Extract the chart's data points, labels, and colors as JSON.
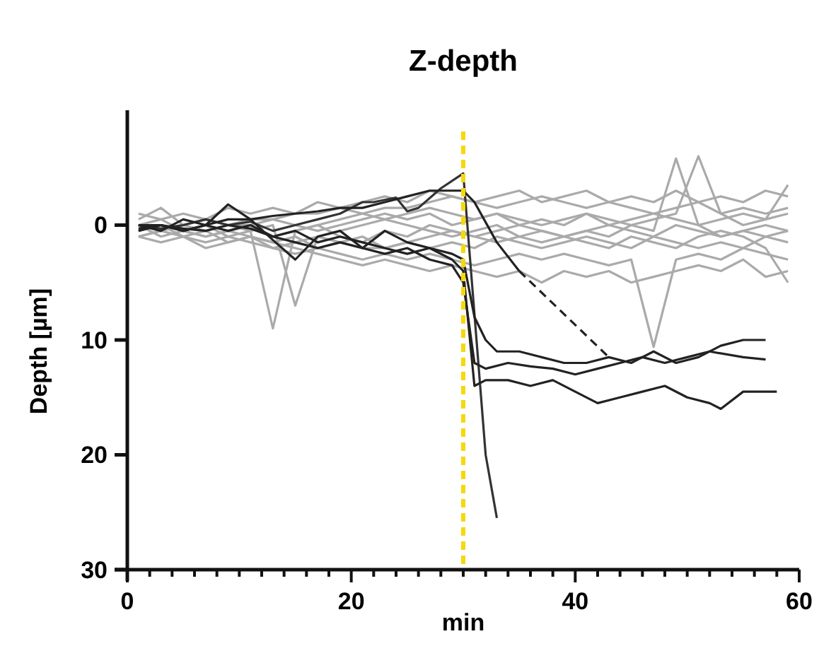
{
  "chart_data": {
    "type": "line",
    "title": "Z-depth",
    "xlabel": "min",
    "ylabel": "Depth [µm]",
    "xlim": [
      0,
      60
    ],
    "ylim": [
      30,
      -10
    ],
    "xticks": [
      0,
      {
        "value": 2,
        "label": null
      },
      {
        "value": 4,
        "label": null
      },
      {
        "value": 6,
        "label": null
      },
      {
        "value": 8,
        "label": null
      },
      {
        "value": 10,
        "label": null
      },
      {
        "value": 12,
        "label": null
      },
      {
        "value": 14,
        "label": null
      },
      {
        "value": 16,
        "label": null
      },
      {
        "value": 18,
        "label": null
      },
      20,
      {
        "value": 22,
        "label": null
      },
      {
        "value": 24,
        "label": null
      },
      {
        "value": 26,
        "label": null
      },
      {
        "value": 28,
        "label": null
      },
      {
        "value": 30,
        "label": null
      },
      {
        "value": 32,
        "label": null
      },
      {
        "value": 34,
        "label": null
      },
      {
        "value": 36,
        "label": null
      },
      {
        "value": 38,
        "label": null
      },
      40,
      {
        "value": 42,
        "label": null
      },
      {
        "value": 44,
        "label": null
      },
      {
        "value": 46,
        "label": null
      },
      {
        "value": 48,
        "label": null
      },
      {
        "value": 50,
        "label": null
      },
      {
        "value": 52,
        "label": null
      },
      {
        "value": 54,
        "label": null
      },
      {
        "value": 56,
        "label": null
      },
      {
        "value": 58,
        "label": null
      },
      60
    ],
    "yticks": [
      0,
      10,
      20,
      30
    ],
    "grid": false,
    "x": [
      1,
      3,
      5,
      7,
      9,
      11,
      13,
      15,
      17,
      19,
      21,
      23,
      25,
      27,
      29,
      31,
      33,
      35,
      37,
      39,
      41,
      43,
      45,
      47,
      49,
      51,
      53,
      55,
      57,
      59
    ],
    "ref_lines": [
      {
        "axis": "x",
        "value": 30,
        "color": "#f5d90a",
        "line_style": "dashed"
      }
    ],
    "series": [
      {
        "color": "#aaaaaa",
        "values": [
          1,
          0.5,
          0,
          -0.5,
          0,
          0.5,
          9,
          0.5,
          0,
          -0.5,
          -1,
          -1.5,
          -1.5,
          -2,
          -2.5,
          -2,
          -1.5,
          -2,
          -2.5,
          -2,
          -1.5,
          -2,
          -1.5,
          -1,
          -1.5,
          -2,
          -1,
          -1.5,
          -1,
          -1.5
        ]
      },
      {
        "color": "#aaaaaa",
        "values": [
          0,
          -0.5,
          0.5,
          0,
          1,
          0.5,
          0,
          7,
          1,
          0.5,
          0,
          -0.5,
          0,
          0.5,
          1,
          0.5,
          0,
          1,
          1.5,
          1,
          0.5,
          1,
          0,
          0.5,
          -5.8,
          0,
          1,
          0.5,
          1,
          0.5
        ]
      },
      {
        "color": "#aaaaaa",
        "values": [
          -0.5,
          -1.5,
          0,
          0.5,
          0,
          -0.5,
          -0.5,
          -1,
          -1,
          -1.5,
          -2,
          -2.5,
          -2,
          -3,
          -2.5,
          -2,
          -2.5,
          -3,
          -2,
          -2.5,
          -3,
          -2,
          -2.5,
          -2,
          -3,
          -2,
          -2.5,
          -2,
          -3,
          -2.5
        ]
      },
      {
        "color": "#aaaaaa",
        "values": [
          1,
          1.5,
          1,
          2,
          1.5,
          1,
          1.5,
          2,
          2.5,
          3,
          3.5,
          3,
          3.5,
          4,
          3.5,
          4,
          4.5,
          4,
          5,
          4,
          4.5,
          4,
          5,
          4.5,
          4,
          3.5,
          4,
          3,
          4.5,
          4
        ]
      },
      {
        "color": "#aaaaaa",
        "values": [
          0.5,
          0,
          1,
          0.5,
          1.5,
          1,
          2,
          2.5,
          2,
          2.5,
          3,
          2.5,
          3,
          2.5,
          3,
          3.5,
          3,
          2.5,
          3,
          2.5,
          3,
          3.5,
          3,
          10.6,
          3,
          2.5,
          3,
          2,
          2.5,
          3
        ]
      },
      {
        "color": "#aaaaaa",
        "values": [
          0,
          0.5,
          0,
          -0.5,
          0,
          0,
          -0.5,
          0,
          0.5,
          0,
          -0.5,
          -1,
          -0.5,
          -1,
          0,
          -0.5,
          -1,
          0,
          -0.5,
          0,
          -1,
          -0.5,
          0,
          -0.5,
          -1,
          -6,
          -1,
          0,
          -0.5,
          -3.5
        ]
      },
      {
        "color": "#aaaaaa",
        "values": [
          1,
          0.5,
          1,
          1.5,
          1,
          1.5,
          2,
          1.5,
          1,
          1.5,
          1,
          2,
          1.5,
          1,
          0.5,
          1,
          1.5,
          1,
          0.5,
          1,
          1.5,
          2,
          1,
          1.5,
          2,
          1,
          0.5,
          1,
          2,
          5
        ]
      },
      {
        "color": "#aaaaaa",
        "values": [
          -1,
          -0.5,
          -1,
          -0.5,
          -1.5,
          -1,
          -1.5,
          -1,
          -2,
          -1.5,
          -1,
          -0.5,
          -1,
          -1.5,
          -1,
          -0.5,
          -1,
          -0.5,
          0,
          -0.5,
          -1,
          0,
          -0.5,
          -1,
          -0.5,
          0,
          -0.5,
          -1,
          -0.5,
          -1
        ]
      },
      {
        "color": "#aaaaaa",
        "values": [
          0,
          1,
          0.5,
          1,
          0.5,
          1,
          1.5,
          1,
          2,
          1.5,
          2,
          2,
          1.5,
          2,
          1.5,
          2,
          1,
          1.5,
          2,
          1.5,
          1,
          1.5,
          2,
          1,
          1.5,
          2,
          1.5,
          2,
          1,
          1.5
        ]
      },
      {
        "color": "#aaaaaa",
        "values": [
          0.5,
          0,
          0.5,
          1,
          0.5,
          0,
          1,
          0.5,
          0,
          1,
          1.5,
          0.5,
          1,
          0,
          0.5,
          1,
          0.5,
          0,
          0.5,
          1,
          0.5,
          0,
          0.5,
          1,
          0,
          0.5,
          1,
          0.5,
          0,
          0.5
        ]
      },
      {
        "color": "#333333",
        "x": [
          1,
          3,
          5,
          7,
          9,
          11,
          13,
          15,
          17,
          19,
          21,
          22,
          24,
          25,
          26,
          28,
          30,
          32,
          33
        ],
        "values": [
          0,
          0.3,
          0,
          -0.5,
          0,
          -0.3,
          0.5,
          0,
          -0.5,
          -1,
          -2,
          -2,
          -2.4,
          -1.2,
          -1.5,
          -3.2,
          -4.5,
          20,
          25.5
        ]
      },
      {
        "color": "#222222",
        "x": [
          1,
          3,
          5,
          7,
          9,
          11,
          13,
          15,
          17,
          19,
          21,
          23,
          25,
          27,
          29,
          30,
          31,
          33,
          35
        ],
        "values": [
          0.3,
          0,
          0.5,
          0,
          -0.5,
          -0.5,
          -0.8,
          -1,
          -1.2,
          -1.5,
          -1.5,
          -2,
          -2.5,
          -3,
          -3,
          -3,
          -2,
          1.5,
          4
        ]
      },
      {
        "color": "#222222",
        "line_style": "dashed",
        "x": [
          35,
          43
        ],
        "values": [
          4,
          11.5
        ]
      },
      {
        "color": "#222222",
        "x": [
          1,
          3,
          5,
          7,
          9,
          11,
          13,
          15,
          17,
          19,
          21,
          23,
          25,
          27,
          29,
          30,
          31,
          32,
          33,
          35,
          37,
          39,
          41,
          43,
          45,
          47,
          49,
          51,
          53,
          55,
          57
        ],
        "values": [
          0,
          0.5,
          -0.5,
          0,
          -1.8,
          -0.5,
          1.3,
          3,
          1,
          0.5,
          2,
          0.5,
          1.5,
          2,
          2.5,
          3,
          8,
          10,
          11,
          11,
          11.5,
          12,
          12,
          11.5,
          12,
          11,
          12,
          11.5,
          10.5,
          10,
          10
        ]
      },
      {
        "color": "#222222",
        "x": [
          1,
          3,
          5,
          7,
          9,
          11,
          13,
          15,
          17,
          19,
          21,
          23,
          25,
          27,
          29,
          30,
          31,
          32,
          34,
          36,
          38,
          40,
          42,
          44,
          46,
          48,
          50,
          52,
          55,
          57
        ],
        "values": [
          0.5,
          0,
          0.3,
          0.5,
          0,
          0.3,
          1,
          1.5,
          2,
          1.5,
          2,
          2.5,
          2,
          3,
          3.5,
          5,
          12,
          12.5,
          12,
          12.3,
          12.5,
          13,
          12.5,
          12,
          11.5,
          12,
          11.5,
          11,
          11.5,
          11.7
        ]
      },
      {
        "color": "#222222",
        "x": [
          1,
          3,
          5,
          7,
          9,
          11,
          13,
          15,
          17,
          19,
          21,
          23,
          25,
          27,
          29,
          30,
          31,
          32,
          34,
          36,
          38,
          40,
          42,
          44,
          46,
          48,
          50,
          52,
          53,
          55,
          58
        ],
        "values": [
          0,
          0,
          0.5,
          0,
          0.5,
          0,
          1,
          0.5,
          1.5,
          1,
          1.5,
          2,
          2.5,
          2,
          3,
          4,
          14,
          13.5,
          13.5,
          14,
          13.5,
          14.5,
          15.5,
          15,
          14.5,
          14,
          15,
          15.5,
          16,
          14.5,
          14.5
        ]
      }
    ]
  }
}
